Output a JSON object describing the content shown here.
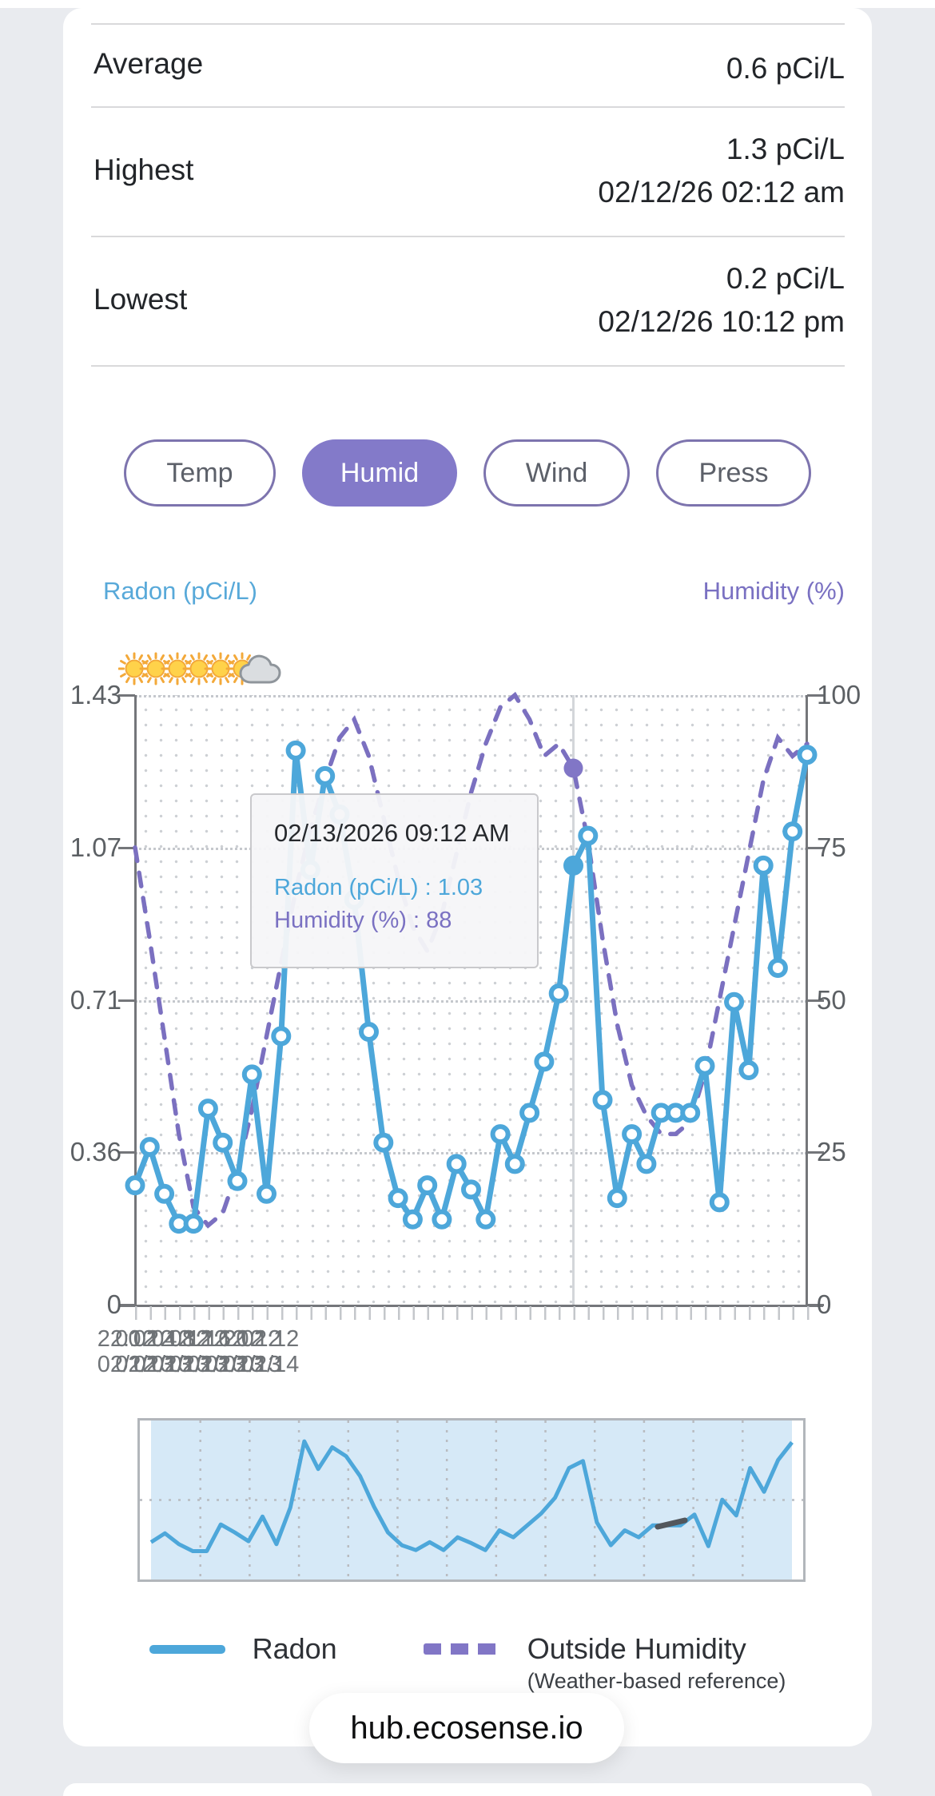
{
  "page": {
    "url_bar_text": "hub.ecosense.io",
    "background": "#e9ebef"
  },
  "stats": {
    "rows": [
      {
        "label": "Average",
        "value": "0.6 pCi/L",
        "datetime": ""
      },
      {
        "label": "Highest",
        "value": "1.3 pCi/L",
        "datetime": "02/12/26 02:12 am"
      },
      {
        "label": "Lowest",
        "value": "0.2 pCi/L",
        "datetime": "02/12/26 10:12 pm"
      }
    ]
  },
  "filter_buttons": [
    {
      "label": "Temp",
      "active": false
    },
    {
      "label": "Humid",
      "active": true
    },
    {
      "label": "Wind",
      "active": false
    },
    {
      "label": "Press",
      "active": false
    }
  ],
  "axis_titles": {
    "left": "Radon (pCi/L)",
    "right": "Humidity (%)"
  },
  "tooltip": {
    "title": "02/13/2026 09:12 AM",
    "separator": " : ",
    "rows": [
      {
        "label": "Radon (pCi/L)",
        "value": "1.03"
      },
      {
        "label": "Humidity (%)",
        "value": "88"
      }
    ]
  },
  "legend": {
    "radon_label": "Radon",
    "humidity_label": "Outside Humidity",
    "humidity_sub_label": "(Weather-based reference)"
  },
  "colors": {
    "radon_blue": "#4da7da",
    "humidity_purple": "#8176c6",
    "humidity_dash": "#7b70c0",
    "active_button_fill": "#837ac9",
    "button_border": "#7d74ae",
    "crosshair": "#d3d6da",
    "navigator_fill": "#d6e9f7"
  },
  "chart_data": {
    "type": "line",
    "title": "",
    "left_axis": {
      "title": "Radon (pCi/L)",
      "ticks": [
        "1.43",
        "1.07",
        "0.71",
        "0.36",
        "0"
      ],
      "range": [
        0,
        1.43
      ]
    },
    "right_axis": {
      "title": "Humidity (%)",
      "ticks": [
        "100",
        "75",
        "50",
        "25",
        "0"
      ],
      "range": [
        0,
        100
      ]
    },
    "grid": "fine-dotted",
    "legend_position": "bottom",
    "weather_icons": [
      "sun",
      "sun",
      "sun",
      "sun",
      "sun",
      "sun",
      "cloud"
    ],
    "x_tick_labels": [
      {
        "time": "22:12",
        "date": "02/12"
      },
      {
        "time": "00:12",
        "date": "02/13"
      },
      {
        "time": "02:12",
        "date": "02/13"
      },
      {
        "time": "04:12",
        "date": "02/13"
      },
      {
        "time": "08:12",
        "date": "02/13"
      },
      {
        "time": "12:12",
        "date": "02/13"
      },
      {
        "time": "16:12",
        "date": "02/13"
      },
      {
        "time": "20:12",
        "date": "02/13"
      },
      {
        "time": "02:12",
        "date": "02/14"
      }
    ],
    "series": [
      {
        "name": "Radon",
        "axis": "left",
        "color": "#4da7da",
        "style": "solid-with-markers",
        "values": [
          0.28,
          0.37,
          0.26,
          0.19,
          0.19,
          0.46,
          0.38,
          0.29,
          0.54,
          0.26,
          0.63,
          1.3,
          1.02,
          1.24,
          1.15,
          0.95,
          0.64,
          0.38,
          0.25,
          0.2,
          0.28,
          0.2,
          0.33,
          0.27,
          0.2,
          0.4,
          0.33,
          0.45,
          0.57,
          0.73,
          1.03,
          1.1,
          0.48,
          0.25,
          0.4,
          0.33,
          0.45,
          0.45,
          0.45,
          0.56,
          0.24,
          0.71,
          0.55,
          1.03,
          0.79,
          1.11,
          1.29
        ]
      },
      {
        "name": "Outside Humidity",
        "axis": "right",
        "color": "#7b70c0",
        "style": "dashed",
        "values": [
          75,
          60,
          44,
          28,
          16,
          13,
          15,
          22,
          32,
          44,
          56,
          68,
          78,
          86,
          93,
          96,
          90,
          80,
          70,
          62,
          58,
          64,
          74,
          84,
          92,
          98,
          100,
          96,
          90,
          92,
          88,
          76,
          60,
          46,
          36,
          31,
          28,
          28,
          30,
          38,
          50,
          62,
          74,
          86,
          93,
          90,
          92
        ]
      }
    ],
    "hover": {
      "index": 30,
      "label": "02/13/2026 09:12 AM",
      "radon": 1.03,
      "humidity": 88
    },
    "navigator": {
      "series": "Radon",
      "selection": "full-range"
    }
  }
}
